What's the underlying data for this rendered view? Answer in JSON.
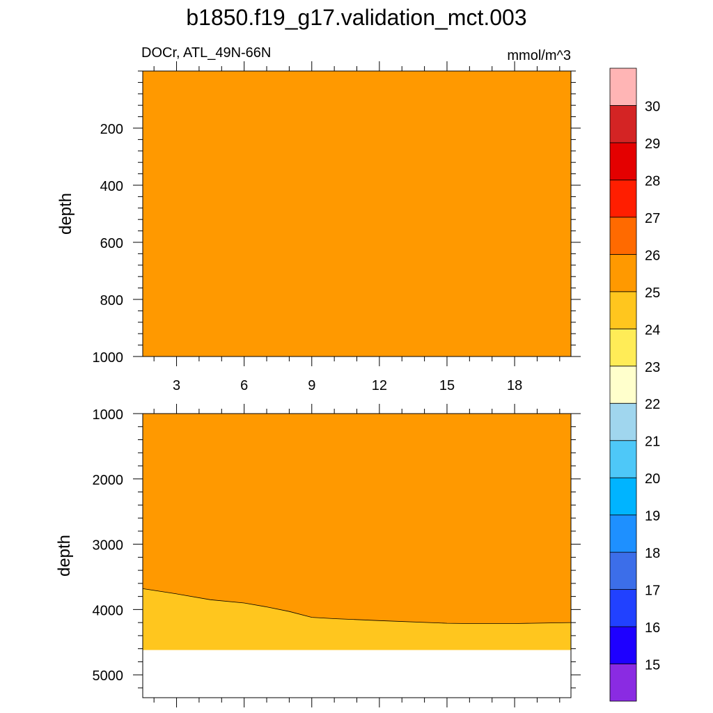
{
  "chart_data": {
    "type": "heatmap",
    "title": "b1850.f19_g17.validation_mct.003",
    "variable_label": "DOCr, ATL_49N-66N",
    "units_label": "mmol/m^3",
    "xlabel": "",
    "x_ticks": [
      3,
      6,
      9,
      12,
      15,
      18
    ],
    "x_range": [
      1.5,
      20.5
    ],
    "panels": [
      {
        "name": "upper",
        "ylabel": "depth",
        "y_range": [
          0,
          1000
        ],
        "y_ticks": [
          200,
          400,
          600,
          800,
          1000
        ],
        "fill_color": "#ff9900",
        "fill_interval": "25-26",
        "boundary": []
      },
      {
        "name": "lower",
        "ylabel": "depth",
        "y_range": [
          1000,
          5350
        ],
        "y_ticks": [
          1000,
          2000,
          3000,
          4000,
          5000
        ],
        "fill_color_top": "#ff9900",
        "fill_interval_top": "25-26",
        "fill_color_bottom": "#ffc61e",
        "fill_interval_bottom": "24-25",
        "bottom_depth": 4620,
        "boundary_x": [
          1.5,
          3,
          4.5,
          6,
          7,
          8,
          9,
          10,
          12,
          15,
          16,
          18,
          20.5
        ],
        "boundary_depth": [
          3680,
          3760,
          3850,
          3900,
          3960,
          4030,
          4120,
          4140,
          4170,
          4210,
          4215,
          4215,
          4200
        ]
      }
    ],
    "colorbar": {
      "labels": [
        15,
        16,
        17,
        18,
        19,
        20,
        21,
        22,
        23,
        24,
        25,
        26,
        27,
        28,
        29,
        30
      ],
      "colors": [
        "#8a2be2",
        "#1e00ff",
        "#2141ff",
        "#3c6ee9",
        "#1e90ff",
        "#00b4ff",
        "#4ec8f8",
        "#a0d6ee",
        "#ffffcc",
        "#ffec57",
        "#ffc61e",
        "#ff9900",
        "#ff6a00",
        "#ff1e00",
        "#e40000",
        "#d42424",
        "#ffb5b5"
      ]
    }
  }
}
